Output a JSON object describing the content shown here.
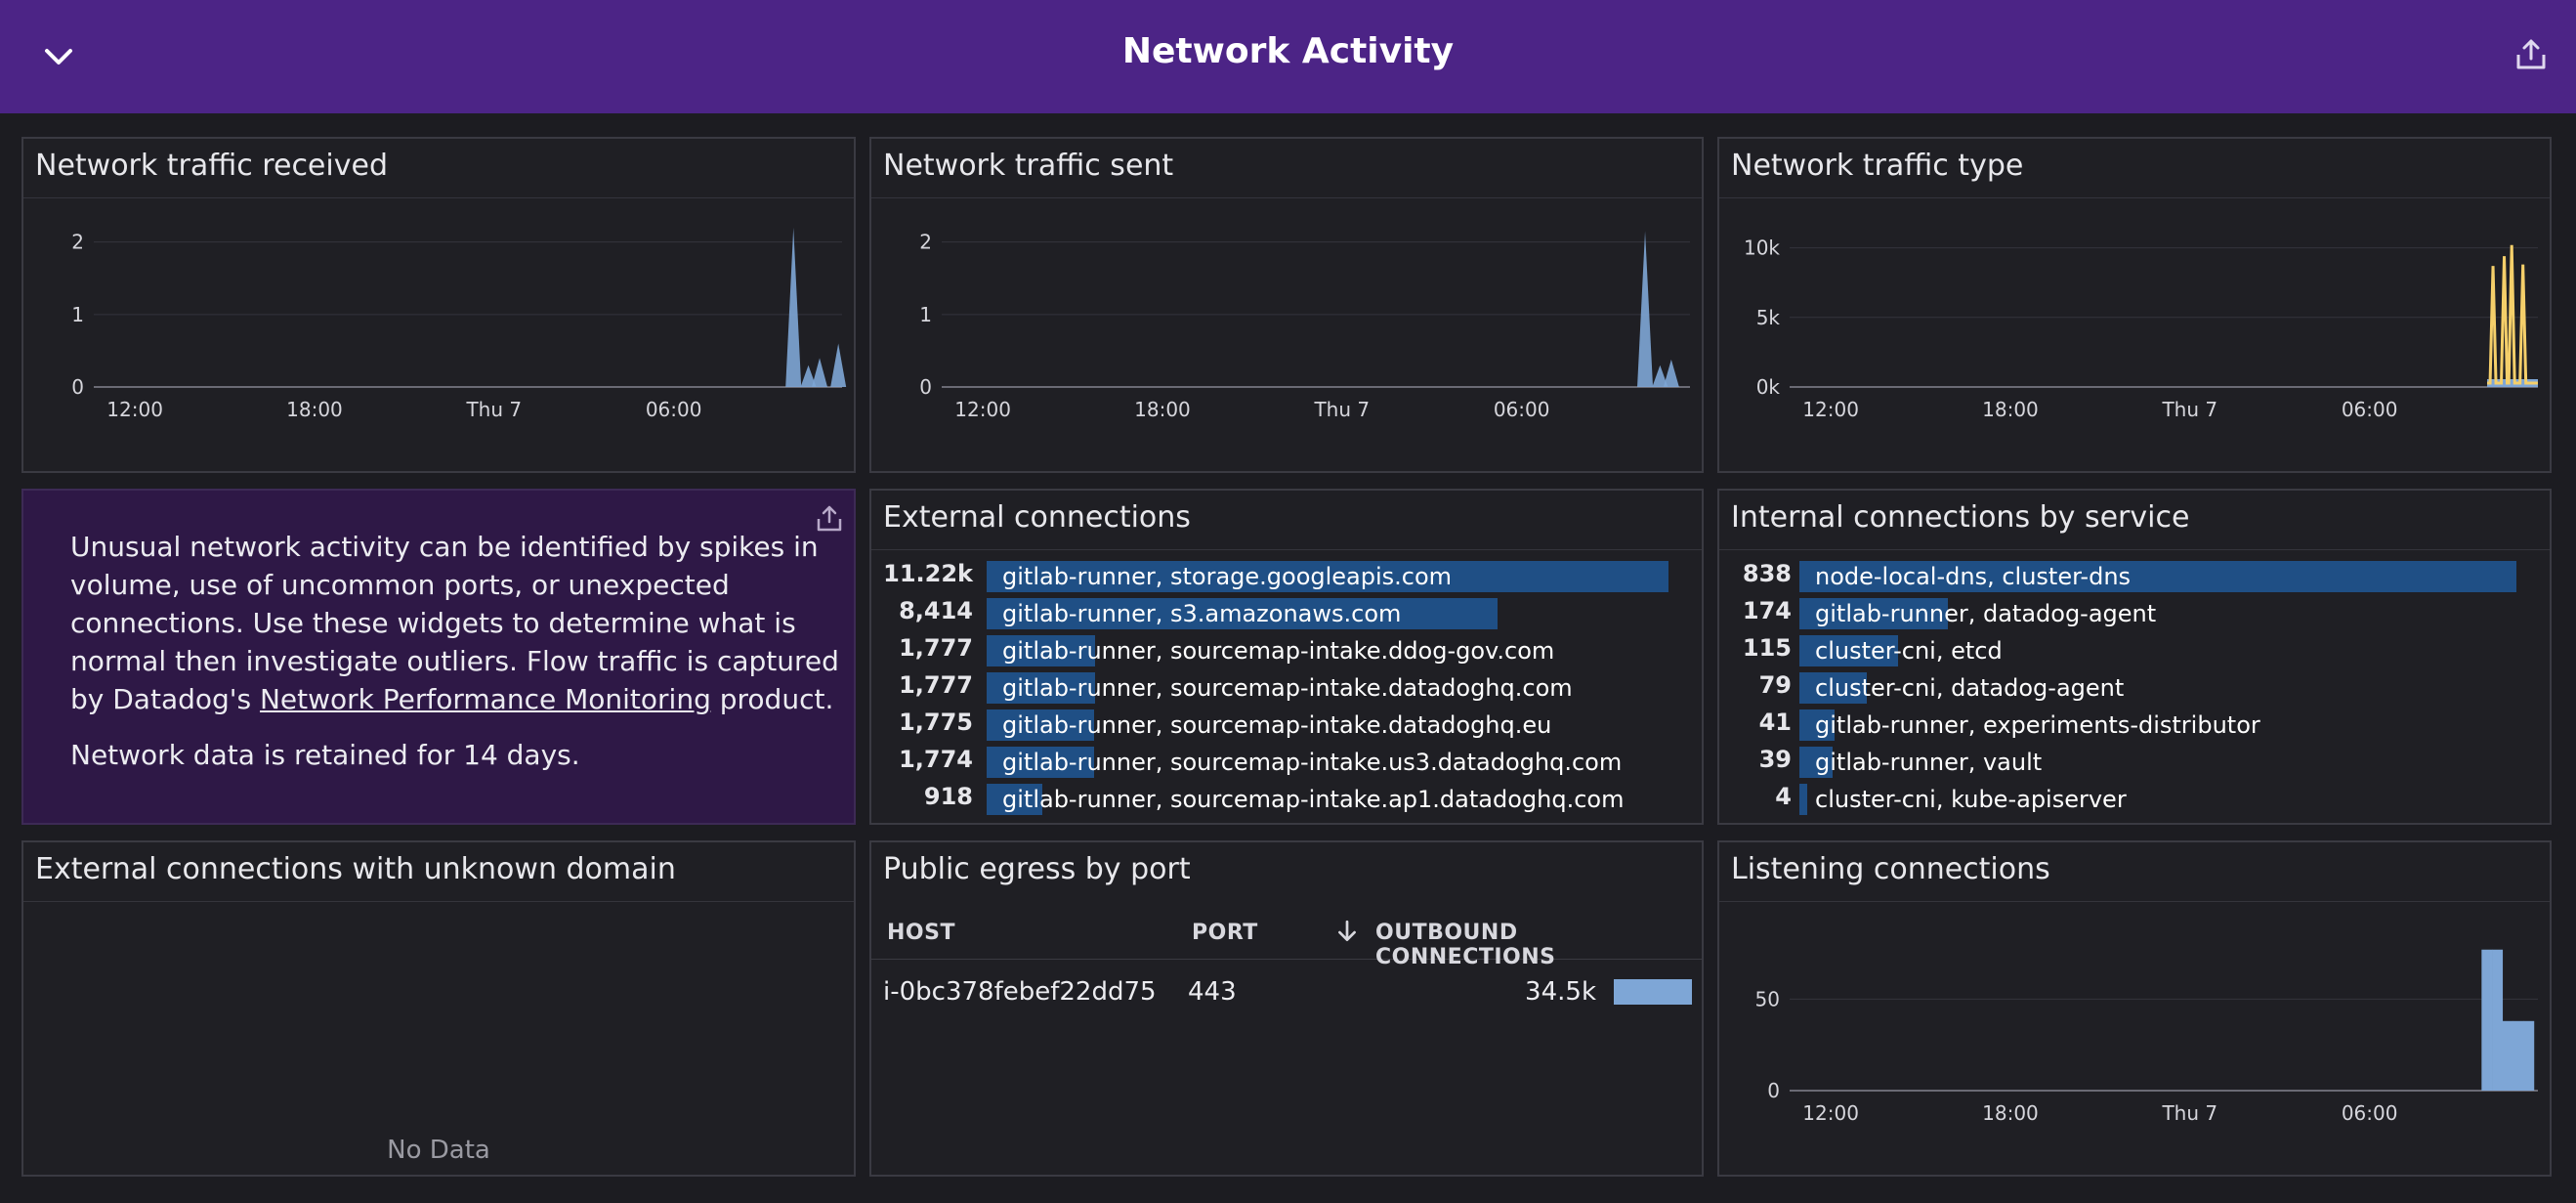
{
  "header": {
    "title": "Network Activity"
  },
  "icons": {
    "collapse": "chevron-down-icon",
    "share": "share-icon"
  },
  "widgets": {
    "received": {
      "title": "Network traffic received",
      "chart_data": {
        "type": "area",
        "x_ticks": [
          "12:00",
          "18:00",
          "Thu 7",
          "06:00"
        ],
        "y_ticks": [
          "0",
          "1",
          "2"
        ],
        "ylim": [
          0,
          2.4
        ],
        "color": "#7ea6d6",
        "spikes": [
          {
            "t": 0.935,
            "v": 2.2
          },
          {
            "t": 0.955,
            "v": 0.3
          },
          {
            "t": 0.97,
            "v": 0.4
          },
          {
            "t": 0.995,
            "v": 0.6
          }
        ]
      }
    },
    "sent": {
      "title": "Network traffic sent",
      "chart_data": {
        "type": "area",
        "x_ticks": [
          "12:00",
          "18:00",
          "Thu 7",
          "06:00"
        ],
        "y_ticks": [
          "0",
          "1",
          "2"
        ],
        "ylim": [
          0,
          2.4
        ],
        "color": "#7ea6d6",
        "spikes": [
          {
            "t": 0.94,
            "v": 2.15
          },
          {
            "t": 0.96,
            "v": 0.3
          },
          {
            "t": 0.975,
            "v": 0.38
          }
        ]
      }
    },
    "type": {
      "title": "Network traffic type",
      "chart_data": {
        "type": "line",
        "x_ticks": [
          "12:00",
          "18:00",
          "Thu 7",
          "06:00"
        ],
        "y_ticks": [
          "0k",
          "5k",
          "10k"
        ],
        "ylim": [
          0,
          12500
        ],
        "colors": [
          "#f5cf6a",
          "#7ea6d6"
        ],
        "spikes": [
          {
            "t": 0.94,
            "v": 8700
          },
          {
            "t": 0.955,
            "v": 9400
          },
          {
            "t": 0.965,
            "v": 10200
          },
          {
            "t": 0.98,
            "v": 8800
          }
        ]
      }
    },
    "note": {
      "text_before_link": "Unusual network activity can be identified by spikes in volume, use of uncommon ports, or unexpected connections. Use these widgets to determine what is normal then investigate outliers. Flow traffic is captured by Datadog's ",
      "link_text": "Network Performance Monitoring",
      "text_after_link": " product.",
      "retention": "Network data is retained for 14 days."
    },
    "external": {
      "title": "External connections",
      "max": 11220,
      "rows": [
        {
          "value": "11.22k",
          "num": 11220,
          "label": "gitlab-runner, storage.googleapis.com"
        },
        {
          "value": "8,414",
          "num": 8414,
          "label": "gitlab-runner, s3.amazonaws.com"
        },
        {
          "value": "1,777",
          "num": 1777,
          "label": "gitlab-runner, sourcemap-intake.ddog-gov.com"
        },
        {
          "value": "1,777",
          "num": 1777,
          "label": "gitlab-runner, sourcemap-intake.datadoghq.com"
        },
        {
          "value": "1,775",
          "num": 1775,
          "label": "gitlab-runner, sourcemap-intake.datadoghq.eu"
        },
        {
          "value": "1,774",
          "num": 1774,
          "label": "gitlab-runner, sourcemap-intake.us3.datadoghq.com"
        },
        {
          "value": "918",
          "num": 918,
          "label": "gitlab-runner, sourcemap-intake.ap1.datadoghq.com"
        }
      ]
    },
    "internal": {
      "title": "Internal connections by service",
      "max": 838,
      "rows": [
        {
          "value": "838",
          "num": 838,
          "label": "node-local-dns, cluster-dns"
        },
        {
          "value": "174",
          "num": 174,
          "label": "gitlab-runner, datadog-agent"
        },
        {
          "value": "115",
          "num": 115,
          "label": "cluster-cni, etcd"
        },
        {
          "value": "79",
          "num": 79,
          "label": "cluster-cni, datadog-agent"
        },
        {
          "value": "41",
          "num": 41,
          "label": "gitlab-runner, experiments-distributor"
        },
        {
          "value": "39",
          "num": 39,
          "label": "gitlab-runner, vault"
        },
        {
          "value": "4",
          "num": 4,
          "label": "cluster-cni, kube-apiserver"
        }
      ]
    },
    "unknown": {
      "title": "External connections with unknown domain",
      "nodata": "No Data"
    },
    "egress": {
      "title": "Public egress by port",
      "columns": {
        "host": "HOST",
        "port": "PORT",
        "outbound": "OUTBOUND CONNECTIONS"
      },
      "rows": [
        {
          "host": "i-0bc378febef22dd75",
          "port": "443",
          "outbound": "34.5k",
          "fraction": 1.0
        }
      ]
    },
    "listening": {
      "title": "Listening connections",
      "chart_data": {
        "type": "bar",
        "x_ticks": [
          "12:00",
          "18:00",
          "Thu 7",
          "06:00"
        ],
        "y_ticks": [
          "0",
          "50"
        ],
        "ylim": [
          0,
          95
        ],
        "color": "#7ea6d6",
        "bars": [
          {
            "t": 0.958,
            "v": 77
          },
          {
            "t": 0.972,
            "v": 77
          },
          {
            "t": 0.986,
            "v": 38
          },
          {
            "t": 1.0,
            "v": 38
          },
          {
            "t": 1.014,
            "v": 38
          }
        ]
      }
    }
  }
}
